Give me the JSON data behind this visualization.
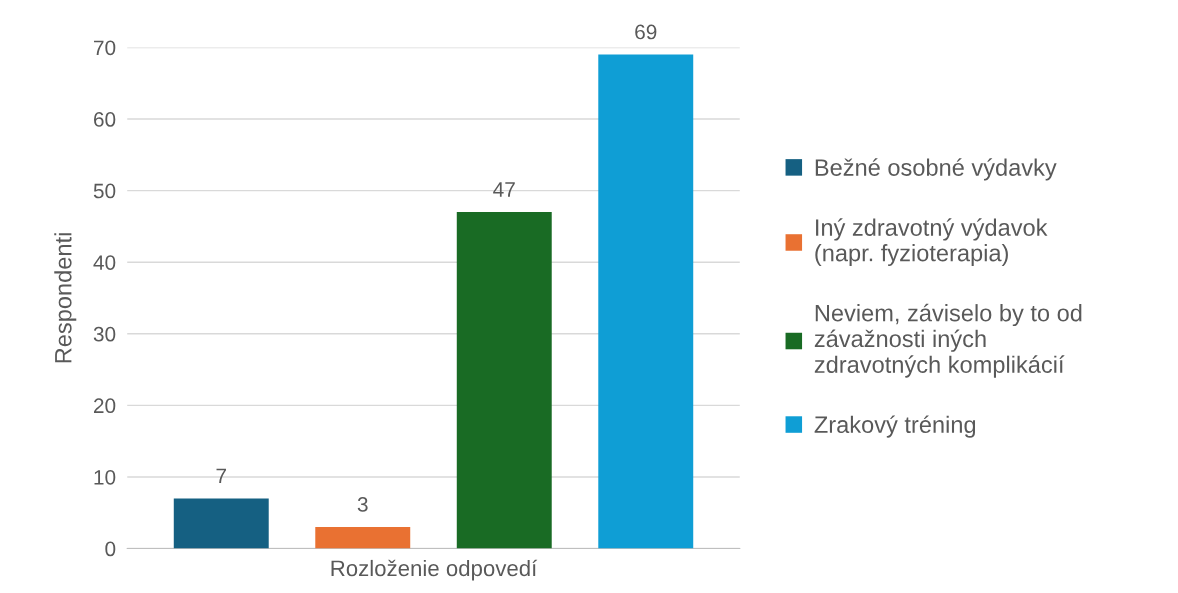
{
  "chart_data": {
    "type": "bar",
    "categories": [
      "Rozloženie odpovedí"
    ],
    "ylabel": "Respondenti",
    "series": [
      {
        "name": "Bežné osobné výdavky",
        "color": "#156082",
        "values": [
          7
        ]
      },
      {
        "name": "Iný zdravotný výdavok\n(napr. fyzioterapia)",
        "color": "#e97132",
        "values": [
          3
        ]
      },
      {
        "name": "Neviem, záviselo by to od\nzávažnosti iných\nzdravotných komplikácií",
        "color": "#196b24",
        "values": [
          47
        ]
      },
      {
        "name": "Zrakový tréning",
        "color": "#0f9ed5",
        "values": [
          69
        ]
      }
    ],
    "ylim": [
      0,
      70
    ],
    "yticks": [
      0,
      10,
      20,
      30,
      40,
      50,
      60,
      70
    ],
    "grid": "y",
    "legend": "right",
    "data_labels": true
  }
}
